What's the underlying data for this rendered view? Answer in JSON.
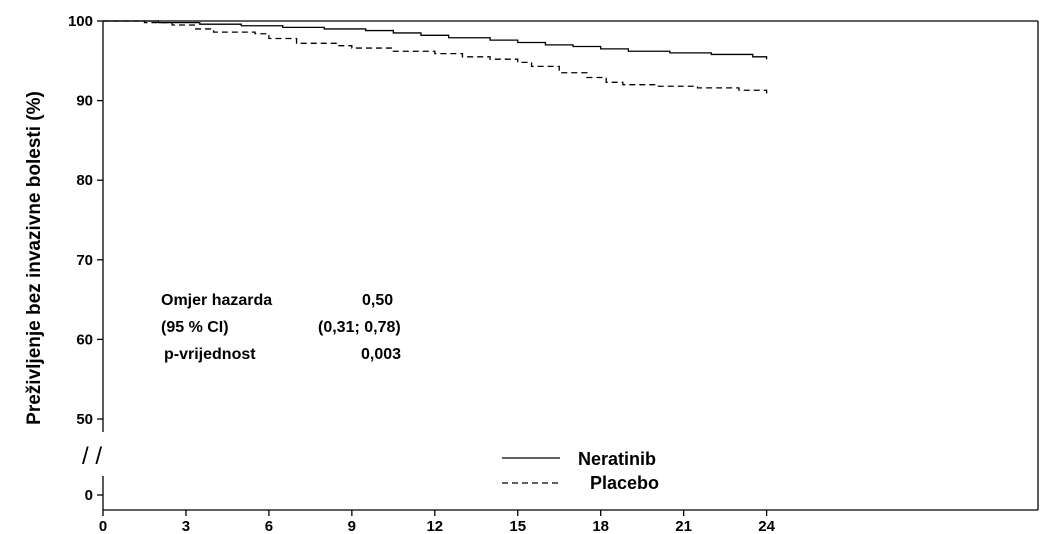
{
  "chart_data": {
    "type": "line",
    "title": "",
    "xlabel": "",
    "ylabel": "Preživljenje bez invazivne bolesti (%)",
    "xlim": [
      0,
      27.5
    ],
    "x_ticks": [
      0,
      3,
      6,
      9,
      12,
      15,
      18,
      21,
      24
    ],
    "y_ticks": [
      0,
      50,
      60,
      70,
      80,
      90,
      100
    ],
    "y_axis_break": {
      "from": 0,
      "to": 50
    },
    "grid": false,
    "legend_position": "bottom-center",
    "series": [
      {
        "name": "Neratinib",
        "line_style": "solid",
        "x": [
          0,
          2,
          3.5,
          5,
          6.5,
          8,
          9.5,
          10.5,
          11.5,
          12.5,
          14,
          15,
          16,
          17,
          18,
          19,
          20.5,
          22,
          23.5,
          24
        ],
        "y": [
          100,
          99.8,
          99.6,
          99.4,
          99.2,
          99.0,
          98.8,
          98.5,
          98.2,
          97.9,
          97.6,
          97.3,
          97.0,
          96.8,
          96.5,
          96.2,
          96.0,
          95.8,
          95.5,
          95.2
        ]
      },
      {
        "name": "Placebo",
        "line_style": "dashed",
        "x": [
          0,
          1.5,
          2.5,
          3.3,
          4,
          5.5,
          6,
          7,
          8.5,
          9,
          10.5,
          12,
          13,
          14,
          15,
          15.5,
          16.5,
          17.5,
          18.2,
          18.8,
          20,
          21.5,
          23,
          24
        ],
        "y": [
          100,
          99.8,
          99.5,
          99.0,
          98.6,
          98.4,
          97.8,
          97.2,
          96.9,
          96.6,
          96.2,
          95.9,
          95.5,
          95.2,
          94.8,
          94.3,
          93.5,
          92.9,
          92.3,
          92.0,
          91.8,
          91.6,
          91.3,
          90.9
        ]
      }
    ],
    "annotations": {
      "hr_label": "Omjer hazarda",
      "hr_value": "0,50",
      "ci_label": "(95 % CI)",
      "ci_value": "(0,31; 0,78)",
      "p_label": "p-vrijednost",
      "p_value": "0,003"
    },
    "break_marker": "/ /"
  }
}
